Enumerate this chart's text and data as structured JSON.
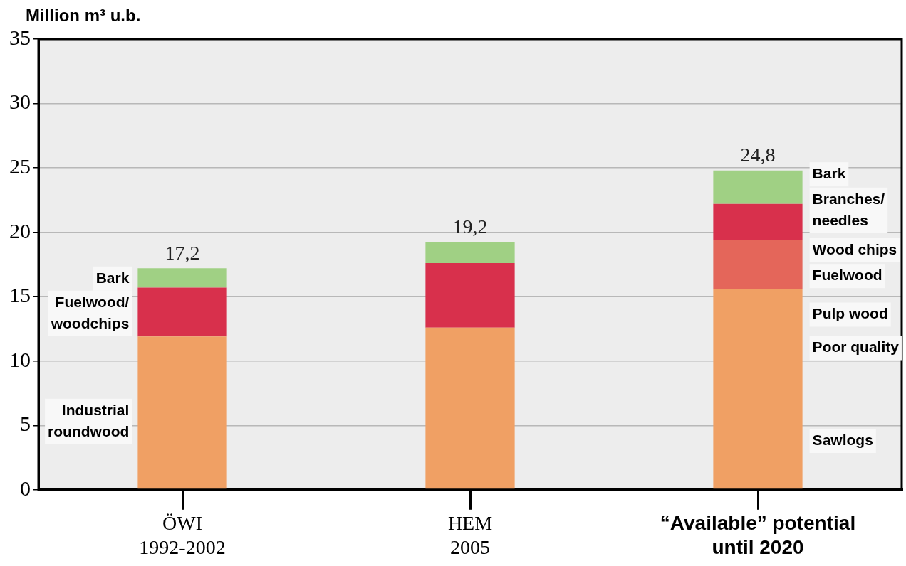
{
  "chart_data": {
    "type": "bar",
    "stacked": true,
    "ylabel": "Million m³ u.b.",
    "categories": [
      "ÖWI\n1992-2002",
      "HEM\n2005",
      "“Available” potential\nuntil 2020"
    ],
    "series": [
      {
        "color": "#f0a064",
        "values": [
          11.9,
          12.6,
          15.6
        ]
      },
      {
        "color": "#e4665a",
        "values": [
          null,
          null,
          3.8
        ]
      },
      {
        "color": "#d8304c",
        "values": [
          3.8,
          5.0,
          2.8
        ]
      },
      {
        "color": "#a0d084",
        "values": [
          1.5,
          1.6,
          2.6
        ]
      }
    ],
    "totals": [
      "17,2",
      "19,2",
      "24,8"
    ],
    "ylim": [
      0,
      35
    ],
    "yticks": [
      0,
      5,
      10,
      15,
      20,
      25,
      30,
      35
    ],
    "grid": "y",
    "legend": false,
    "annotations": [
      "Bark",
      "Fuelwood/\nwoodchips",
      "Industrial\nroundwood",
      "Bark",
      "Branches/\nneedles",
      "Wood chips",
      "Fuelwood",
      "Pulp wood",
      "Poor quality",
      "Sawlogs"
    ]
  }
}
